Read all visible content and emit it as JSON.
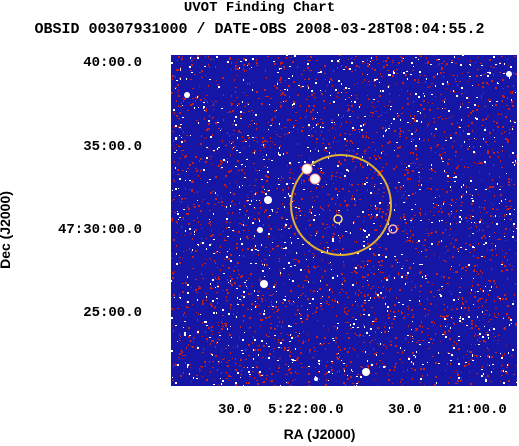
{
  "header": {
    "title": "UVOT Finding Chart",
    "subtitle": "OBSID 00307931000 / DATE-OBS 2008-03-28T08:04:55.2"
  },
  "axes": {
    "ylabel": "Dec (J2000)",
    "xlabel": "RA (J2000)",
    "dec_ticks": [
      "40:00.0",
      "35:00.0",
      "47:30:00.0",
      "25:00.0"
    ],
    "ra_ticks": [
      "30.0",
      "5:22:00.0",
      "30.0",
      "21:00.0"
    ]
  },
  "image": {
    "colors": {
      "background": "#1515a6",
      "noise_red": "#c02020",
      "noise_white": "#ffffff",
      "circle": "#e0b030"
    }
  }
}
